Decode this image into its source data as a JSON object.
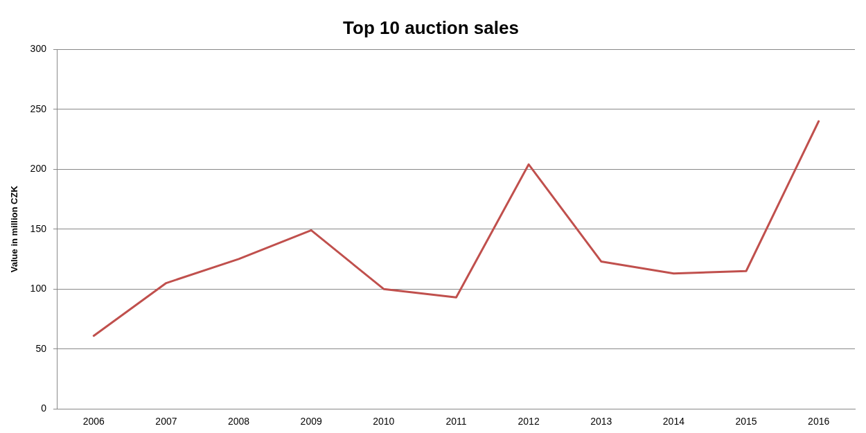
{
  "chart_data": {
    "type": "line",
    "title": "Top 10 auction sales",
    "ylabel": "Value in million CZK",
    "categories": [
      "2006",
      "2007",
      "2008",
      "2009",
      "2010",
      "2011",
      "2012",
      "2013",
      "2014",
      "2015",
      "2016"
    ],
    "series": [
      {
        "color": "#c0504d",
        "values": [
          61,
          105,
          125,
          149,
          100,
          93,
          204,
          123,
          113,
          115,
          240
        ]
      }
    ],
    "ylim": [
      0,
      300
    ],
    "yticks": [
      0,
      50,
      100,
      150,
      200,
      250,
      300
    ],
    "grid": "y",
    "legend": false,
    "marker": "none",
    "line_style": "solid"
  }
}
